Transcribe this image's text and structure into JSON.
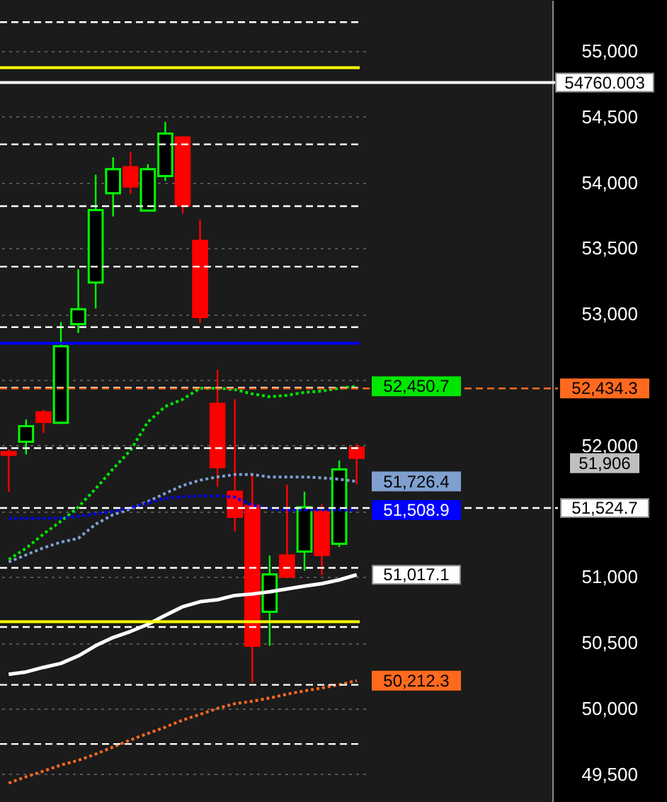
{
  "chart_data": {
    "type": "candlestick",
    "categories": [
      null,
      null,
      null,
      null,
      null,
      null,
      null,
      null,
      null,
      null,
      null,
      null,
      null,
      null,
      null,
      null,
      null,
      null,
      null,
      null,
      null
    ],
    "ohlc": [
      [
        51950,
        51972,
        51649,
        51929
      ],
      [
        52029,
        52198,
        51932,
        52147
      ],
      [
        52252,
        52270,
        52094,
        52180
      ],
      [
        52173,
        52939,
        52163,
        52755
      ],
      [
        52923,
        53341,
        52856,
        53036
      ],
      [
        53240,
        54059,
        53042,
        53790
      ],
      [
        53919,
        54192,
        53742,
        54102
      ],
      [
        54116,
        54235,
        53915,
        53969
      ],
      [
        53786,
        54138,
        53786,
        54102
      ],
      [
        54049,
        54461,
        54012,
        54372
      ],
      [
        54343,
        54343,
        53764,
        53825
      ],
      [
        53556,
        53718,
        52934,
        52977
      ],
      [
        52317,
        52575,
        51689,
        51835
      ],
      [
        51649,
        52352,
        51347,
        51458
      ],
      [
        51541,
        51778,
        50197,
        50477
      ],
      [
        50736,
        51164,
        50477,
        51020
      ],
      [
        51164,
        51703,
        51002,
        51002
      ],
      [
        51193,
        51649,
        51048,
        51530
      ],
      [
        51498,
        51552,
        51013,
        51167
      ],
      [
        51253,
        51886,
        51228,
        51818
      ],
      [
        51983,
        52012,
        51706,
        51906
      ]
    ],
    "colors": [
      "#ff0000",
      "#00ff00",
      "#ff0000",
      "#00ff00",
      "#00ff00",
      "#00ff00",
      "#00ff00",
      "#ff0000",
      "#00ff00",
      "#00ff00",
      "#ff0000",
      "#ff0000",
      "#ff0000",
      "#ff0000",
      "#ff0000",
      "#00ff00",
      "#ff0000",
      "#00ff00",
      "#ff0000",
      "#00ff00",
      "#ff0000"
    ],
    "value_labels": [
      null,
      null,
      null,
      null,
      null,
      null,
      null,
      null,
      null,
      null,
      null,
      null,
      null,
      null,
      null,
      null,
      null,
      null,
      null,
      null,
      "51,906"
    ],
    "series": [
      {
        "type": "line",
        "color": "#00e600",
        "line_style": "dotted",
        "values": [
          51133,
          51219,
          51327,
          51424,
          51532,
          51672,
          51823,
          51963,
          52179,
          52297,
          52351,
          52436,
          52436,
          52425,
          52393,
          52371,
          52382,
          52404,
          52414,
          52436,
          52450.7
        ],
        "value_labels": [
          null,
          null,
          null,
          null,
          null,
          null,
          null,
          null,
          null,
          null,
          null,
          null,
          null,
          null,
          null,
          null,
          null,
          null,
          null,
          null,
          "52,450.7"
        ]
      },
      {
        "type": "line",
        "color": "#7f9fcf",
        "line_style": "dotted",
        "values": [
          51114,
          51168,
          51222,
          51265,
          51294,
          51402,
          51474,
          51517,
          51574,
          51636,
          51696,
          51736,
          51761,
          51779,
          51779,
          51761,
          51761,
          51761,
          51754,
          51744,
          51726.4
        ],
        "value_labels": [
          null,
          null,
          null,
          null,
          null,
          null,
          null,
          null,
          null,
          null,
          null,
          null,
          null,
          null,
          null,
          null,
          null,
          null,
          null,
          null,
          "51,726.4"
        ]
      },
      {
        "type": "line",
        "color": "#0000ff",
        "line_style": "dotted",
        "values": [
          51445,
          51445,
          51445,
          51448,
          51463,
          51481,
          51499,
          51528,
          51563,
          51599,
          51610,
          51617,
          51617,
          51607,
          51545,
          51520,
          51510,
          51510,
          51510,
          51510,
          51508.9
        ],
        "value_labels": [
          null,
          null,
          null,
          null,
          null,
          null,
          null,
          null,
          null,
          null,
          null,
          null,
          null,
          null,
          null,
          null,
          null,
          null,
          null,
          null,
          "51,508.9"
        ]
      },
      {
        "type": "line",
        "color": "#ffffff",
        "line_style": "solid",
        "values": [
          50260,
          50278,
          50313,
          50343,
          50400,
          50478,
          50540,
          50586,
          50640,
          50709,
          50774,
          50812,
          50827,
          50860,
          50871,
          50888,
          50909,
          50931,
          50950,
          50978,
          51017.1
        ],
        "value_labels": [
          null,
          null,
          null,
          null,
          null,
          null,
          null,
          null,
          null,
          null,
          null,
          null,
          null,
          null,
          null,
          null,
          null,
          null,
          null,
          null,
          "51,017.1"
        ]
      },
      {
        "type": "line",
        "color": "#ff6a1f",
        "line_style": "dotted",
        "values": [
          49433,
          49481,
          49524,
          49570,
          49606,
          49653,
          49707,
          49761,
          49810,
          49858,
          49912,
          49955,
          50001,
          50037,
          50055,
          50080,
          50109,
          50134,
          50156,
          50181,
          50212.3
        ],
        "value_labels": [
          null,
          null,
          null,
          null,
          null,
          null,
          null,
          null,
          null,
          null,
          null,
          null,
          null,
          null,
          null,
          null,
          null,
          null,
          null,
          null,
          "50,212.3"
        ]
      }
    ],
    "ylim": [
      49289,
      55388
    ],
    "yticks": [
      {
        "value": 49500,
        "label": "49,500"
      },
      {
        "value": 50000,
        "label": "50,000"
      },
      {
        "value": 50500,
        "label": "50,500"
      },
      {
        "value": 51000,
        "label": "51,000"
      },
      {
        "value": 51500,
        "label": null
      },
      {
        "value": 52000,
        "label": "52,000"
      },
      {
        "value": 52500,
        "label": null
      },
      {
        "value": 53000,
        "label": "53,000"
      },
      {
        "value": 53500,
        "label": "53,500"
      },
      {
        "value": 54000,
        "label": "54,000"
      },
      {
        "value": 54500,
        "label": "54,500"
      },
      {
        "value": 55000,
        "label": "55,000"
      }
    ],
    "grid": "y",
    "tick_labels": "y",
    "ref_lines": [
      {
        "axis": "y",
        "value": 54874,
        "color": "#ffff00",
        "line_style": "solid"
      },
      {
        "axis": "y",
        "value": 50660,
        "color": "#ffff00",
        "line_style": "solid"
      },
      {
        "axis": "y",
        "value": 52777,
        "color": "#0000ff",
        "line_style": "solid"
      },
      {
        "axis": "y",
        "value": 54760.003,
        "label": "54760.003",
        "color": "#ffffff",
        "line_style": "solid"
      },
      {
        "axis": "y",
        "value": 55220,
        "color": "#ffffff",
        "line_style": "dashed"
      },
      {
        "axis": "y",
        "value": 54290,
        "color": "#ffffff",
        "line_style": "dashed"
      },
      {
        "axis": "y",
        "value": 53820,
        "color": "#ffffff",
        "line_style": "dashed"
      },
      {
        "axis": "y",
        "value": 53360,
        "color": "#ffffff",
        "line_style": "dashed"
      },
      {
        "axis": "y",
        "value": 52900,
        "color": "#ffffff",
        "line_style": "dashed"
      },
      {
        "axis": "y",
        "value": 52440,
        "color": "#ffffff",
        "line_style": "dashed"
      },
      {
        "axis": "y",
        "value": 52434.3,
        "label": "52,434.3",
        "color": "#ff6a1f",
        "line_style": "dashed"
      },
      {
        "axis": "y",
        "value": 51980,
        "color": "#ffffff",
        "line_style": "dashed"
      },
      {
        "axis": "y",
        "value": 51524.7,
        "label": "51,524.7",
        "color": "#ffffff",
        "line_style": "dashed"
      },
      {
        "axis": "y",
        "value": 51070,
        "color": "#ffffff",
        "line_style": "dashed"
      },
      {
        "axis": "y",
        "value": 50620,
        "color": "#ffffff",
        "line_style": "dashed"
      },
      {
        "axis": "y",
        "value": 50180,
        "color": "#ffffff",
        "line_style": "dashed"
      },
      {
        "axis": "y",
        "value": 49730,
        "color": "#ffffff",
        "line_style": "dashed"
      }
    ]
  }
}
